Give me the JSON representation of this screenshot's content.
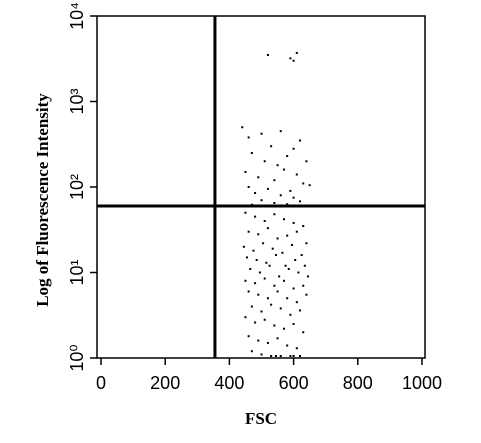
{
  "chart_data": {
    "type": "scatter",
    "xlabel": "FSC",
    "ylabel": "Log of Fluorescence Intensity",
    "color": "#000000",
    "xlim": [
      0,
      1000
    ],
    "ylim": [
      1,
      10000
    ],
    "log_y": true,
    "xticks": [
      0,
      200,
      400,
      600,
      800,
      1000
    ],
    "yticks": [
      {
        "value": 1,
        "label": "10⁰"
      },
      {
        "value": 10,
        "label": "10¹"
      },
      {
        "value": 100,
        "label": "10²"
      },
      {
        "value": 1000,
        "label": "10³"
      },
      {
        "value": 10000,
        "label": "10⁴"
      }
    ],
    "gates": {
      "x": 355,
      "y": 60
    },
    "x": [
      520,
      590,
      610,
      600,
      440,
      460,
      500,
      530,
      560,
      600,
      620,
      470,
      510,
      550,
      580,
      640,
      450,
      490,
      540,
      570,
      610,
      630,
      460,
      520,
      590,
      650,
      480,
      560,
      600,
      500,
      540,
      620,
      470,
      580,
      450,
      480,
      510,
      540,
      570,
      600,
      630,
      460,
      490,
      520,
      550,
      580,
      610,
      640,
      445,
      475,
      505,
      535,
      565,
      595,
      625,
      455,
      485,
      515,
      545,
      575,
      605,
      635,
      465,
      495,
      525,
      555,
      585,
      615,
      645,
      450,
      480,
      510,
      540,
      570,
      600,
      630,
      460,
      490,
      520,
      550,
      580,
      610,
      640,
      470,
      500,
      530,
      560,
      590,
      620,
      450,
      480,
      510,
      540,
      570,
      600,
      630,
      460,
      490,
      520,
      550,
      580,
      610,
      470,
      500,
      530,
      560,
      590,
      620,
      545,
      600
    ],
    "values": [
      3500,
      3200,
      3700,
      3000,
      500,
      380,
      420,
      300,
      450,
      280,
      350,
      250,
      200,
      180,
      230,
      200,
      150,
      130,
      120,
      160,
      140,
      110,
      100,
      95,
      90,
      105,
      85,
      80,
      75,
      70,
      65,
      68,
      62,
      63,
      50,
      45,
      40,
      48,
      42,
      38,
      35,
      30,
      28,
      33,
      25,
      27,
      30,
      22,
      20,
      18,
      22,
      19,
      17,
      21,
      16,
      15,
      14,
      13,
      16,
      12,
      14,
      12,
      11,
      10,
      12,
      9,
      11,
      10,
      9,
      8,
      7.5,
      8.5,
      7,
      8,
      6.5,
      7,
      6,
      5.5,
      5,
      6,
      5,
      4.5,
      5.5,
      4,
      3.5,
      4.2,
      3.8,
      3.2,
      3.6,
      3,
      2.6,
      2.8,
      2.4,
      2.2,
      2.5,
      2,
      1.8,
      1.6,
      1.5,
      1.7,
      1.4,
      1.3,
      1.2,
      1.1,
      1,
      1,
      1,
      1,
      1,
      1
    ]
  }
}
